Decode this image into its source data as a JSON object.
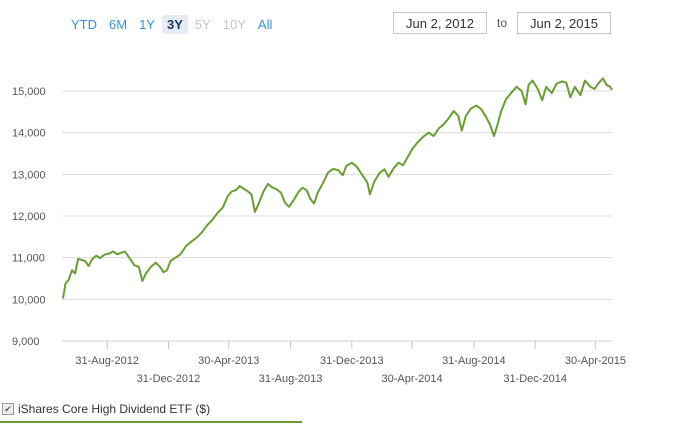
{
  "range_selector": {
    "buttons": [
      {
        "label": "YTD",
        "state": "normal"
      },
      {
        "label": "6M",
        "state": "normal"
      },
      {
        "label": "1Y",
        "state": "normal"
      },
      {
        "label": "3Y",
        "state": "active"
      },
      {
        "label": "5Y",
        "state": "disabled"
      },
      {
        "label": "10Y",
        "state": "disabled"
      },
      {
        "label": "All",
        "state": "normal"
      }
    ],
    "from_date": "Jun 2, 2012",
    "to_label": "to",
    "to_date": "Jun 2, 2015"
  },
  "legend": {
    "series_name": "iShares Core High Dividend ETF ($)",
    "checked": true
  },
  "colors": {
    "line": "#6b9c35",
    "grid": "#dcdcdc",
    "button_link": "#3a8fd6",
    "button_active_bg": "#e6ebf5"
  },
  "chart_data": {
    "type": "line",
    "title": "",
    "xlabel": "",
    "ylabel": "",
    "ylim": [
      9000,
      15500
    ],
    "xlim": [
      "2012-06-02",
      "2015-06-02"
    ],
    "grid": true,
    "legend_position": "bottom-left",
    "y_ticks": [
      "9,000",
      "10,000",
      "11,000",
      "12,000",
      "13,000",
      "14,000",
      "15,000"
    ],
    "x_ticks": [
      {
        "date": "2012-08-31",
        "label": "31-Aug-2012"
      },
      {
        "date": "2012-12-31",
        "label": "31-Dec-2012"
      },
      {
        "date": "2013-04-30",
        "label": "30-Apr-2013"
      },
      {
        "date": "2013-08-31",
        "label": "31-Aug-2013"
      },
      {
        "date": "2013-12-31",
        "label": "31-Dec-2013"
      },
      {
        "date": "2014-04-30",
        "label": "30-Apr-2014"
      },
      {
        "date": "2014-08-31",
        "label": "31-Aug-2014"
      },
      {
        "date": "2014-12-31",
        "label": "31-Dec-2014"
      },
      {
        "date": "2015-04-30",
        "label": "30-Apr-2015"
      }
    ],
    "series": [
      {
        "name": "iShares Core High Dividend ETF ($)",
        "points": [
          [
            "2012-06-04",
            10020
          ],
          [
            "2012-06-09",
            10380
          ],
          [
            "2012-06-15",
            10460
          ],
          [
            "2012-06-22",
            10700
          ],
          [
            "2012-06-28",
            10620
          ],
          [
            "2012-07-04",
            10970
          ],
          [
            "2012-07-10",
            10950
          ],
          [
            "2012-07-18",
            10920
          ],
          [
            "2012-07-25",
            10800
          ],
          [
            "2012-08-01",
            10960
          ],
          [
            "2012-08-09",
            11050
          ],
          [
            "2012-08-17",
            10990
          ],
          [
            "2012-08-25",
            11070
          ],
          [
            "2012-09-04",
            11100
          ],
          [
            "2012-09-12",
            11150
          ],
          [
            "2012-09-20",
            11080
          ],
          [
            "2012-09-28",
            11120
          ],
          [
            "2012-10-05",
            11150
          ],
          [
            "2012-10-15",
            10980
          ],
          [
            "2012-10-24",
            10820
          ],
          [
            "2012-11-02",
            10780
          ],
          [
            "2012-11-09",
            10440
          ],
          [
            "2012-11-16",
            10620
          ],
          [
            "2012-11-26",
            10780
          ],
          [
            "2012-12-06",
            10880
          ],
          [
            "2012-12-14",
            10780
          ],
          [
            "2012-12-21",
            10650
          ],
          [
            "2012-12-28",
            10700
          ],
          [
            "2013-01-04",
            10920
          ],
          [
            "2013-01-14",
            11000
          ],
          [
            "2013-01-24",
            11080
          ],
          [
            "2013-02-04",
            11280
          ],
          [
            "2013-02-14",
            11380
          ],
          [
            "2013-02-25",
            11480
          ],
          [
            "2013-03-07",
            11600
          ],
          [
            "2013-03-18",
            11780
          ],
          [
            "2013-03-28",
            11900
          ],
          [
            "2013-04-08",
            12080
          ],
          [
            "2013-04-18",
            12200
          ],
          [
            "2013-04-28",
            12480
          ],
          [
            "2013-05-06",
            12590
          ],
          [
            "2013-05-14",
            12620
          ],
          [
            "2013-05-22",
            12720
          ],
          [
            "2013-05-30",
            12650
          ],
          [
            "2013-06-06",
            12600
          ],
          [
            "2013-06-14",
            12520
          ],
          [
            "2013-06-21",
            12100
          ],
          [
            "2013-06-28",
            12280
          ],
          [
            "2013-07-08",
            12580
          ],
          [
            "2013-07-17",
            12770
          ],
          [
            "2013-07-25",
            12690
          ],
          [
            "2013-08-02",
            12650
          ],
          [
            "2013-08-12",
            12560
          ],
          [
            "2013-08-20",
            12320
          ],
          [
            "2013-08-28",
            12220
          ],
          [
            "2013-09-06",
            12380
          ],
          [
            "2013-09-16",
            12580
          ],
          [
            "2013-09-24",
            12680
          ],
          [
            "2013-10-02",
            12620
          ],
          [
            "2013-10-10",
            12400
          ],
          [
            "2013-10-17",
            12300
          ],
          [
            "2013-10-24",
            12560
          ],
          [
            "2013-11-04",
            12800
          ],
          [
            "2013-11-14",
            13050
          ],
          [
            "2013-11-24",
            13130
          ],
          [
            "2013-12-04",
            13100
          ],
          [
            "2013-12-13",
            12980
          ],
          [
            "2013-12-20",
            13200
          ],
          [
            "2013-12-31",
            13280
          ],
          [
            "2014-01-10",
            13180
          ],
          [
            "2014-01-20",
            13000
          ],
          [
            "2014-01-31",
            12800
          ],
          [
            "2014-02-05",
            12520
          ],
          [
            "2014-02-14",
            12830
          ],
          [
            "2014-02-24",
            13030
          ],
          [
            "2014-03-06",
            13120
          ],
          [
            "2014-03-14",
            12940
          ],
          [
            "2014-03-24",
            13140
          ],
          [
            "2014-04-03",
            13280
          ],
          [
            "2014-04-12",
            13220
          ],
          [
            "2014-04-22",
            13430
          ],
          [
            "2014-05-01",
            13620
          ],
          [
            "2014-05-12",
            13780
          ],
          [
            "2014-05-22",
            13900
          ],
          [
            "2014-06-02",
            14000
          ],
          [
            "2014-06-12",
            13920
          ],
          [
            "2014-06-22",
            14100
          ],
          [
            "2014-07-02",
            14200
          ],
          [
            "2014-07-12",
            14350
          ],
          [
            "2014-07-22",
            14520
          ],
          [
            "2014-07-31",
            14400
          ],
          [
            "2014-08-07",
            14050
          ],
          [
            "2014-08-15",
            14400
          ],
          [
            "2014-08-25",
            14580
          ],
          [
            "2014-09-05",
            14650
          ],
          [
            "2014-09-15",
            14560
          ],
          [
            "2014-09-24",
            14380
          ],
          [
            "2014-10-02",
            14200
          ],
          [
            "2014-10-10",
            13920
          ],
          [
            "2014-10-16",
            14150
          ],
          [
            "2014-10-24",
            14500
          ],
          [
            "2014-11-03",
            14800
          ],
          [
            "2014-11-13",
            14950
          ],
          [
            "2014-11-24",
            15100
          ],
          [
            "2014-12-04",
            15000
          ],
          [
            "2014-12-12",
            14680
          ],
          [
            "2014-12-18",
            15150
          ],
          [
            "2014-12-26",
            15250
          ],
          [
            "2015-01-05",
            15050
          ],
          [
            "2015-01-14",
            14780
          ],
          [
            "2015-01-22",
            15100
          ],
          [
            "2015-02-02",
            14950
          ],
          [
            "2015-02-12",
            15180
          ],
          [
            "2015-02-23",
            15230
          ],
          [
            "2015-03-03",
            15200
          ],
          [
            "2015-03-11",
            14850
          ],
          [
            "2015-03-20",
            15100
          ],
          [
            "2015-03-31",
            14900
          ],
          [
            "2015-04-09",
            15250
          ],
          [
            "2015-04-20",
            15100
          ],
          [
            "2015-04-28",
            15050
          ],
          [
            "2015-05-07",
            15200
          ],
          [
            "2015-05-15",
            15300
          ],
          [
            "2015-05-22",
            15150
          ],
          [
            "2015-05-29",
            15100
          ],
          [
            "2015-06-02",
            15030
          ]
        ]
      }
    ]
  }
}
